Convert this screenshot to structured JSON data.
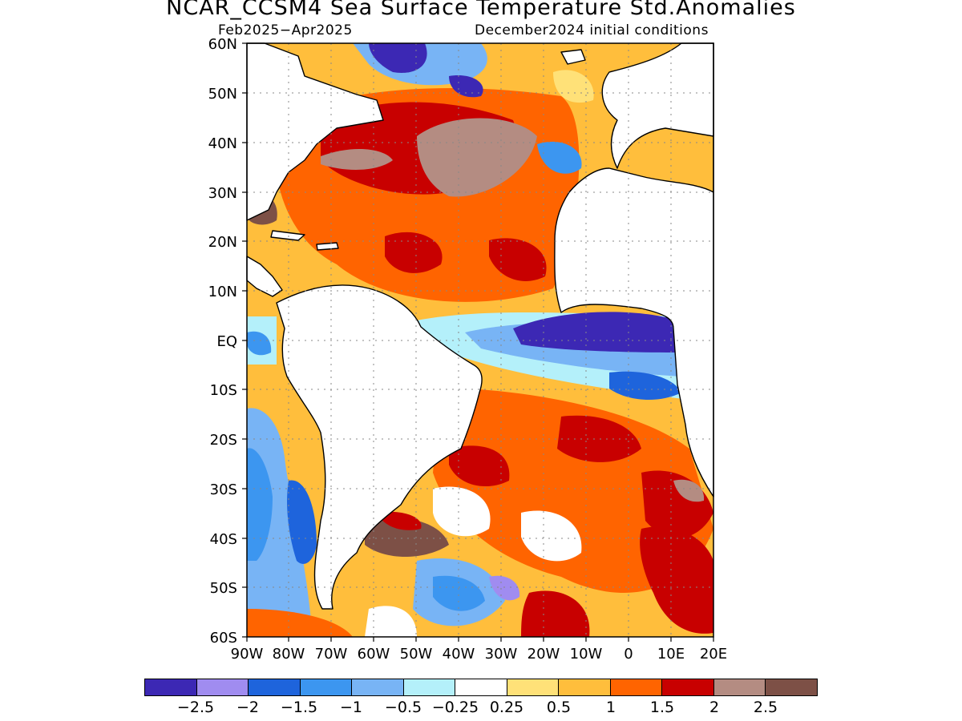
{
  "title": "NCAR_CCSM4 Sea Surface Temperature Std.Anomalies",
  "period": "Feb2025−Apr2025",
  "init": "December2024 initial conditions",
  "lat_ticks": [
    "60N",
    "50N",
    "40N",
    "30N",
    "20N",
    "10N",
    "EQ",
    "10S",
    "20S",
    "30S",
    "40S",
    "50S",
    "60S"
  ],
  "lon_ticks": [
    "90W",
    "80W",
    "70W",
    "60W",
    "50W",
    "40W",
    "30W",
    "20W",
    "10W",
    "0",
    "10E",
    "20E"
  ],
  "colorbar": {
    "colors": [
      "#3c28b4",
      "#a08cf0",
      "#1e64dc",
      "#3c96f0",
      "#78b4f5",
      "#b4f0fa",
      "#ffffff",
      "#ffe178",
      "#ffbe3c",
      "#ff6400",
      "#c80000",
      "#b48c82",
      "#7d5046"
    ],
    "labels": [
      "−2.5",
      "−2",
      "−1.5",
      "−1",
      "−0.5",
      "−0.25",
      "0.25",
      "0.5",
      "1",
      "1.5",
      "2",
      "2.5"
    ]
  }
}
